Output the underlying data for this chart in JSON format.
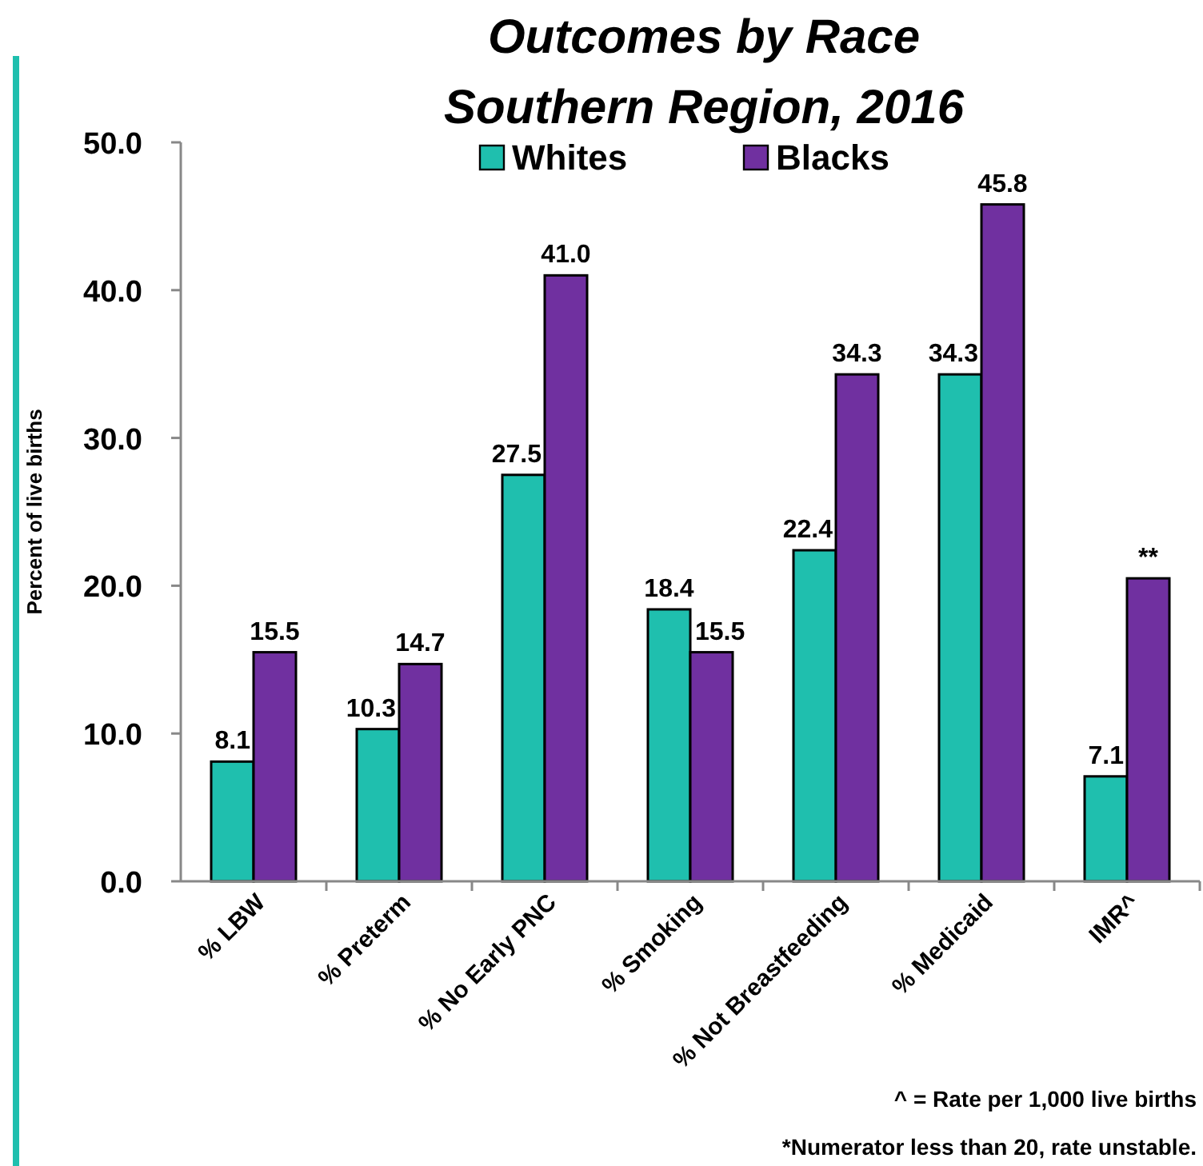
{
  "chart_data": {
    "type": "bar",
    "title": "Outcomes by Race",
    "subtitle": "Southern Region, 2016",
    "ylabel": "Percent of live births",
    "categories": [
      "% LBW",
      "% Preterm",
      "% No Early PNC",
      "% Smoking",
      "% Not Breastfeeding",
      "% Medicaid",
      "IMR^"
    ],
    "series": [
      {
        "name": "Whites",
        "color": "#1fbfae",
        "values": [
          8.1,
          10.3,
          27.5,
          18.4,
          22.4,
          34.3,
          7.1
        ],
        "value_labels": [
          "8.1",
          "10.3",
          "27.5",
          "18.4",
          "22.4",
          "34.3",
          "7.1"
        ]
      },
      {
        "name": "Blacks",
        "color": "#7030a0",
        "values": [
          15.5,
          14.7,
          41.0,
          15.5,
          34.3,
          45.8,
          20.5
        ],
        "value_labels": [
          "15.5",
          "14.7",
          "41.0",
          "15.5",
          "34.3",
          "45.8",
          "**"
        ]
      }
    ],
    "ylim": [
      0,
      50
    ],
    "yticks": [
      {
        "value": 0,
        "label": "0.0"
      },
      {
        "value": 10,
        "label": "10.0"
      },
      {
        "value": 20,
        "label": "20.0"
      },
      {
        "value": 30,
        "label": "30.0"
      },
      {
        "value": 40,
        "label": "40.0"
      },
      {
        "value": 50,
        "label": "50.0"
      }
    ],
    "grid": false,
    "legend": "top",
    "annotations": [
      "^ = Rate per 1,000 live births",
      "*Numerator less than 20, rate unstable."
    ]
  }
}
